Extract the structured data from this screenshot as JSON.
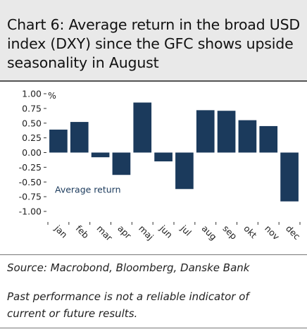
{
  "header": {
    "title": "Chart 6: Average return in the broad USD index (DXY) since the GFC shows upside seasonality in August"
  },
  "chart_data": {
    "type": "bar",
    "title": "Chart 6: Average return in the broad USD index (DXY) since the GFC shows upside seasonality in August",
    "ylabel": "%",
    "xlabel": "",
    "ylim": [
      -1.0,
      1.0
    ],
    "yticks": [
      "1.00",
      "0.75",
      "0.50",
      "0.25",
      "0.00",
      "-0.25",
      "-0.50",
      "-0.75",
      "-1.00"
    ],
    "categories": [
      "jan",
      "feb",
      "mar",
      "apr",
      "maj",
      "jun",
      "jul",
      "aug",
      "sep",
      "okt",
      "nov",
      "dec"
    ],
    "series": [
      {
        "name": "Average return",
        "values": [
          0.39,
          0.52,
          -0.08,
          -0.38,
          0.85,
          -0.15,
          -0.62,
          0.72,
          0.71,
          0.55,
          0.45,
          -0.83
        ]
      }
    ],
    "bar_color": "#1b3a5c",
    "legend_position": "inside-bottom-left"
  },
  "footer": {
    "source": "Source: Macrobond, Bloomberg, Danske Bank",
    "disclaimer": "Past performance is not a reliable indicator of current or future results."
  }
}
